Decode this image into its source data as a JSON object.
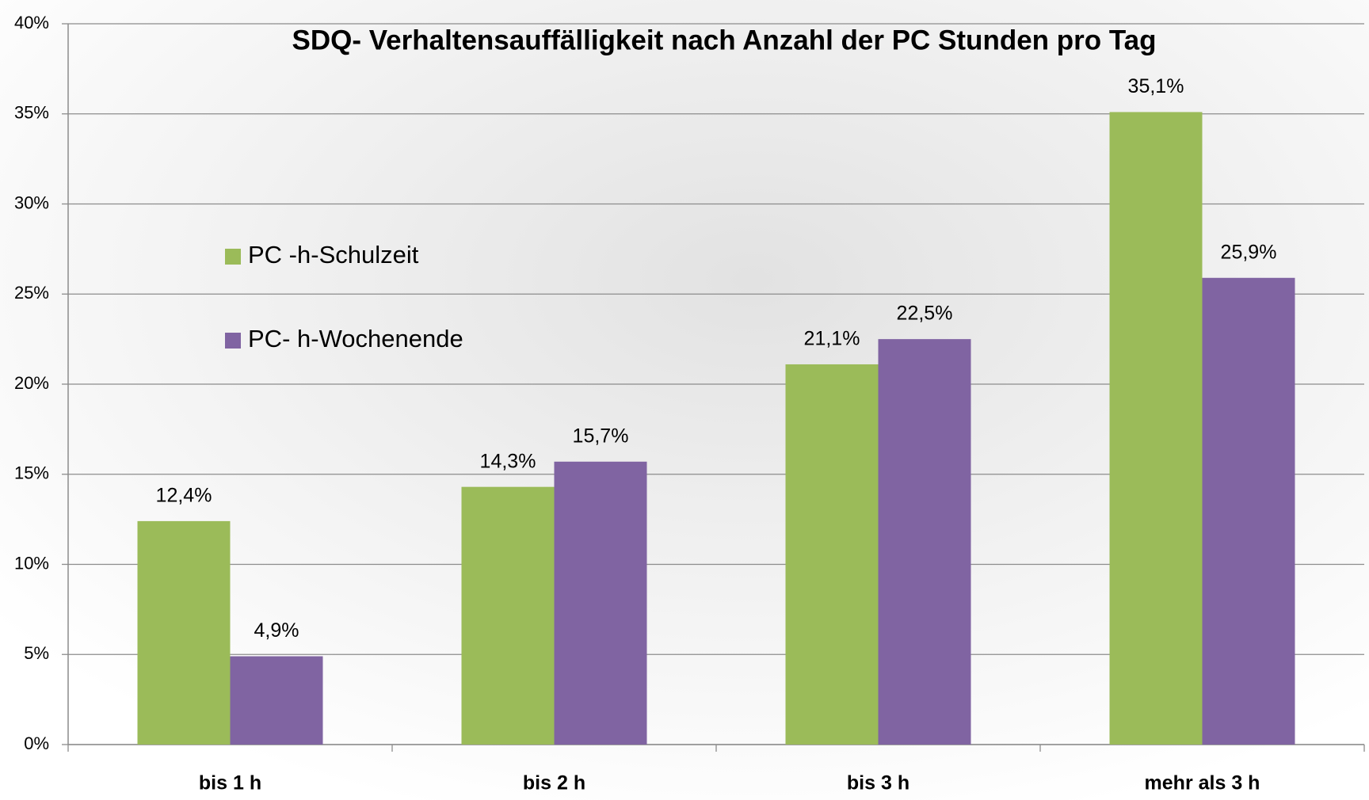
{
  "chart_data": {
    "type": "bar",
    "title": "SDQ- Verhaltensauffälligkeit nach Anzahl der PC Stunden pro Tag",
    "categories": [
      "bis 1 h",
      "bis 2 h",
      "bis 3 h",
      "mehr als 3 h"
    ],
    "series": [
      {
        "name": "PC -h-Schulzeit",
        "color": "#9bbb59",
        "values": [
          12.4,
          14.3,
          21.1,
          35.1
        ],
        "value_labels": [
          "12,4%",
          "14,3%",
          "21,1%",
          "35,1%"
        ]
      },
      {
        "name": "PC- h-Wochenende",
        "color": "#8064a2",
        "values": [
          4.9,
          15.7,
          22.5,
          25.9
        ],
        "value_labels": [
          "4,9%",
          "15,7%",
          "22,5%",
          "25,9%"
        ]
      }
    ],
    "ylim": [
      0,
      40
    ],
    "yticks": [
      {
        "value": 0,
        "label": "0%"
      },
      {
        "value": 5,
        "label": "5%"
      },
      {
        "value": 10,
        "label": "10%"
      },
      {
        "value": 15,
        "label": "15%"
      },
      {
        "value": 20,
        "label": "20%"
      },
      {
        "value": 25,
        "label": "25%"
      },
      {
        "value": 30,
        "label": "30%"
      },
      {
        "value": 35,
        "label": "35%"
      },
      {
        "value": 40,
        "label": "40%"
      }
    ],
    "grid": true,
    "legend": "left"
  }
}
